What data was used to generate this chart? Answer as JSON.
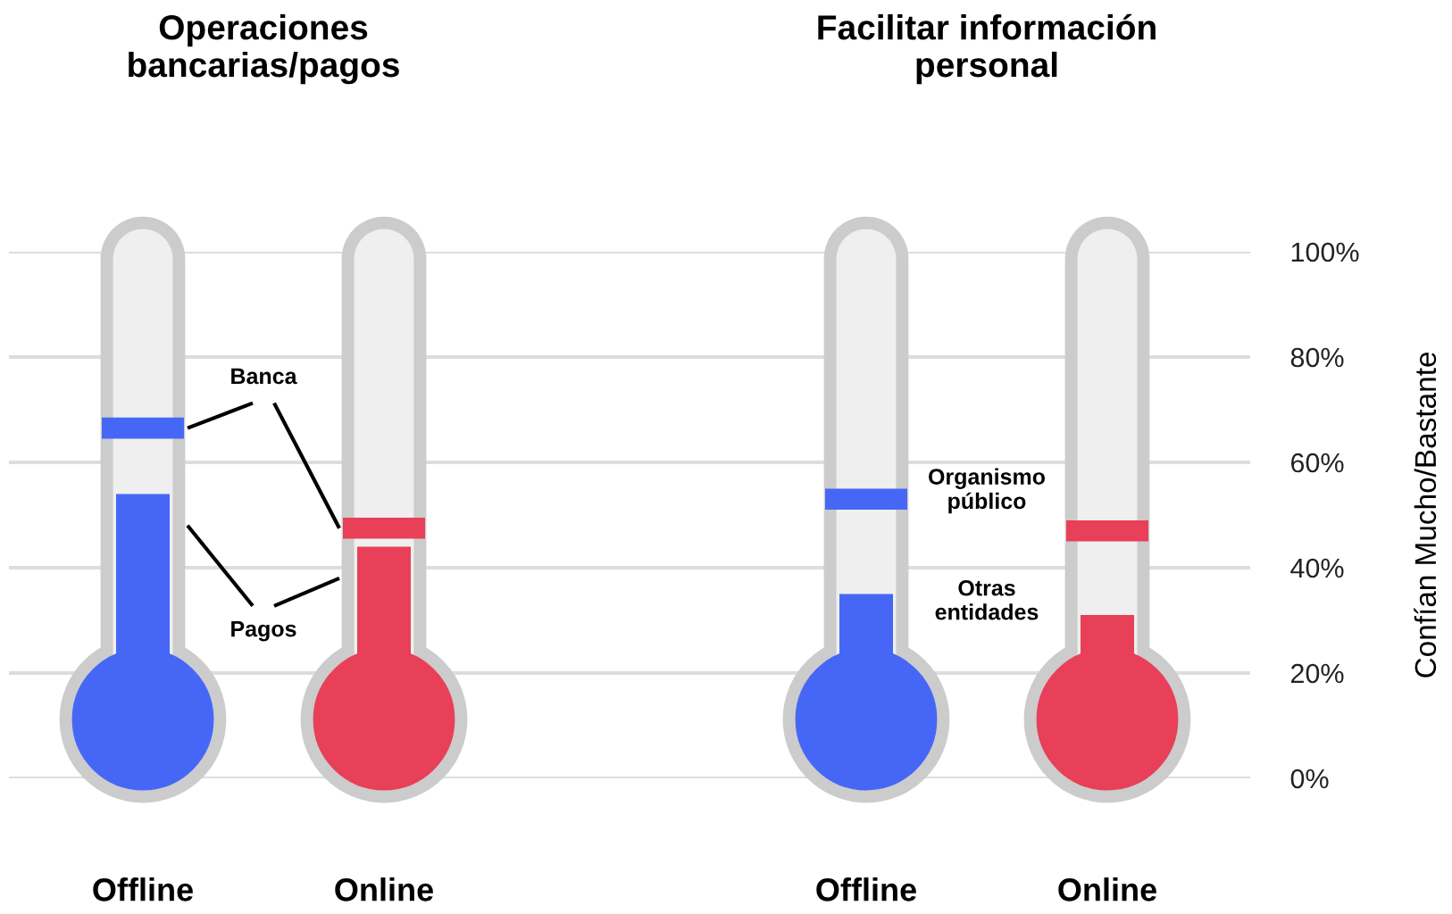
{
  "chart_data": {
    "type": "bar",
    "annotations": [
      "Operaciones\nbancarias/pagos",
      "Facilitar información\npersonal"
    ],
    "categories": [
      "Offline",
      "Online",
      null,
      "Offline",
      "Online"
    ],
    "ylim": [
      0,
      100
    ],
    "yticks": [
      {
        "value": 0,
        "label": "0%"
      },
      {
        "value": 20,
        "label": "20%"
      },
      {
        "value": 40,
        "label": "40%"
      },
      {
        "value": 60,
        "label": "60%"
      },
      {
        "value": 80,
        "label": "80%"
      },
      {
        "value": 100,
        "label": "100%"
      }
    ],
    "grid": "y",
    "ylabel": "Confían Mucho/Bastante",
    "series": [
      {
        "name": "Pagos",
        "colors": [
          "#4667f6",
          "#e84058",
          null,
          null,
          null
        ],
        "values": [
          54,
          44,
          null,
          null,
          null
        ]
      },
      {
        "name": "Banca",
        "colors": [
          "#4667f6",
          "#e84058",
          null,
          null,
          null
        ],
        "base": [
          64.5,
          45.5,
          null,
          null,
          null
        ],
        "values": [
          4,
          4,
          null,
          null,
          null
        ]
      },
      {
        "name": "Otras\nentidades",
        "colors": [
          null,
          null,
          null,
          "#4667f6",
          "#e84058"
        ],
        "values": [
          null,
          null,
          null,
          35,
          31
        ]
      },
      {
        "name": "Organismo\npúblico",
        "colors": [
          null,
          null,
          null,
          "#4667f6",
          "#e84058"
        ],
        "base": [
          null,
          null,
          null,
          51,
          45
        ],
        "values": [
          null,
          null,
          null,
          4,
          4
        ]
      }
    ]
  }
}
